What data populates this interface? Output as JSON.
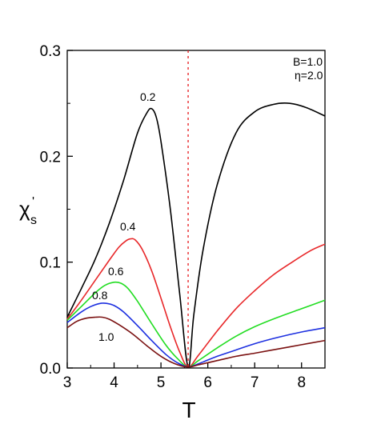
{
  "chart_data": {
    "type": "line",
    "title": "",
    "xlabel": "T",
    "ylabel_main": "χ",
    "ylabel_sub": "s",
    "ylabel_sup": "'",
    "xlim": [
      3,
      8.5
    ],
    "ylim": [
      0,
      0.3
    ],
    "xticks": [
      "3",
      "4",
      "5",
      "6",
      "7",
      "8"
    ],
    "yticks": [
      "0.0",
      "0.1",
      "0.2",
      "0.3"
    ],
    "grid": false,
    "annotations": [
      "B=1.0",
      "η=2.0"
    ],
    "vline": {
      "x": 5.58,
      "style": "dotted",
      "color": "#e8282a"
    },
    "series": [
      {
        "name": "0.2",
        "color": "#000000",
        "x": [
          3.0,
          3.3,
          3.6,
          3.9,
          4.2,
          4.5,
          4.7,
          4.8,
          4.9,
          5.0,
          5.2,
          5.4,
          5.58,
          5.7,
          5.9,
          6.2,
          6.6,
          7.0,
          7.4,
          7.75,
          8.1,
          8.5
        ],
        "y": [
          0.048,
          0.075,
          0.103,
          0.137,
          0.177,
          0.222,
          0.241,
          0.245,
          0.237,
          0.214,
          0.15,
          0.07,
          0.001,
          0.05,
          0.112,
          0.173,
          0.222,
          0.242,
          0.249,
          0.25,
          0.246,
          0.238
        ]
      },
      {
        "name": "0.4",
        "color": "#e8282a",
        "x": [
          3.0,
          3.3,
          3.6,
          3.9,
          4.1,
          4.25,
          4.35,
          4.45,
          4.6,
          4.8,
          5.0,
          5.2,
          5.4,
          5.58,
          5.8,
          6.2,
          6.6,
          7.0,
          7.4,
          7.8,
          8.2,
          8.5
        ],
        "y": [
          0.046,
          0.064,
          0.083,
          0.102,
          0.114,
          0.12,
          0.122,
          0.121,
          0.112,
          0.092,
          0.066,
          0.039,
          0.015,
          0.001,
          0.012,
          0.035,
          0.056,
          0.073,
          0.088,
          0.1,
          0.111,
          0.117
        ]
      },
      {
        "name": "0.6",
        "color": "#22dd22",
        "x": [
          3.0,
          3.3,
          3.6,
          3.8,
          4.0,
          4.15,
          4.3,
          4.5,
          4.8,
          5.1,
          5.35,
          5.58,
          5.8,
          6.2,
          6.6,
          7.0,
          7.5,
          8.0,
          8.5
        ],
        "y": [
          0.045,
          0.058,
          0.071,
          0.078,
          0.081,
          0.08,
          0.075,
          0.063,
          0.042,
          0.022,
          0.009,
          0.001,
          0.007,
          0.019,
          0.03,
          0.039,
          0.048,
          0.056,
          0.064
        ]
      },
      {
        "name": "0.8",
        "color": "#1c2fe0",
        "x": [
          3.0,
          3.3,
          3.5,
          3.7,
          3.85,
          4.0,
          4.2,
          4.5,
          4.8,
          5.1,
          5.35,
          5.58,
          5.8,
          6.2,
          6.6,
          7.0,
          7.5,
          8.0,
          8.5
        ],
        "y": [
          0.043,
          0.053,
          0.058,
          0.061,
          0.061,
          0.059,
          0.053,
          0.04,
          0.026,
          0.013,
          0.005,
          0.001,
          0.004,
          0.011,
          0.017,
          0.023,
          0.029,
          0.034,
          0.038
        ]
      },
      {
        "name": "1.0",
        "color": "#7a1010",
        "x": [
          3.0,
          3.2,
          3.4,
          3.6,
          3.75,
          3.9,
          4.1,
          4.4,
          4.7,
          5.0,
          5.3,
          5.58,
          5.8,
          6.2,
          6.6,
          7.0,
          7.5,
          8.0,
          8.5
        ],
        "y": [
          0.038,
          0.044,
          0.047,
          0.048,
          0.048,
          0.046,
          0.041,
          0.032,
          0.021,
          0.011,
          0.004,
          0.001,
          0.003,
          0.007,
          0.011,
          0.014,
          0.018,
          0.022,
          0.026
        ]
      }
    ]
  }
}
